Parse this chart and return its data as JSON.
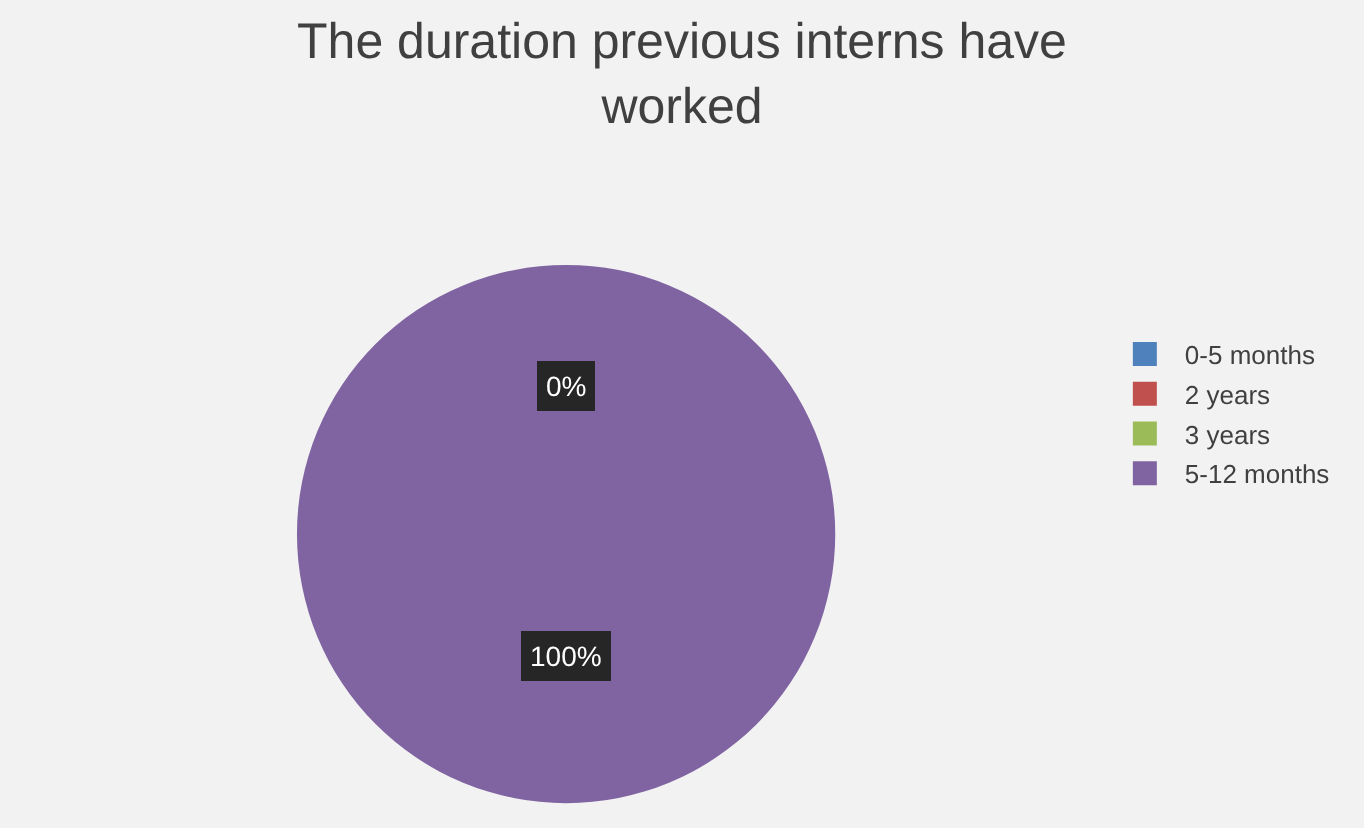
{
  "chart_data": {
    "type": "pie",
    "title": "The duration previous interns have worked",
    "categories": [
      "0-5 months",
      "2 years",
      "3 years",
      "5-12 months"
    ],
    "values": [
      0,
      0,
      0,
      100
    ],
    "colors": [
      "#4f81bd",
      "#c0504d",
      "#9bbb59",
      "#8064a2"
    ],
    "value_labels": [
      "0%",
      null,
      null,
      "100%"
    ],
    "legend": "right"
  }
}
